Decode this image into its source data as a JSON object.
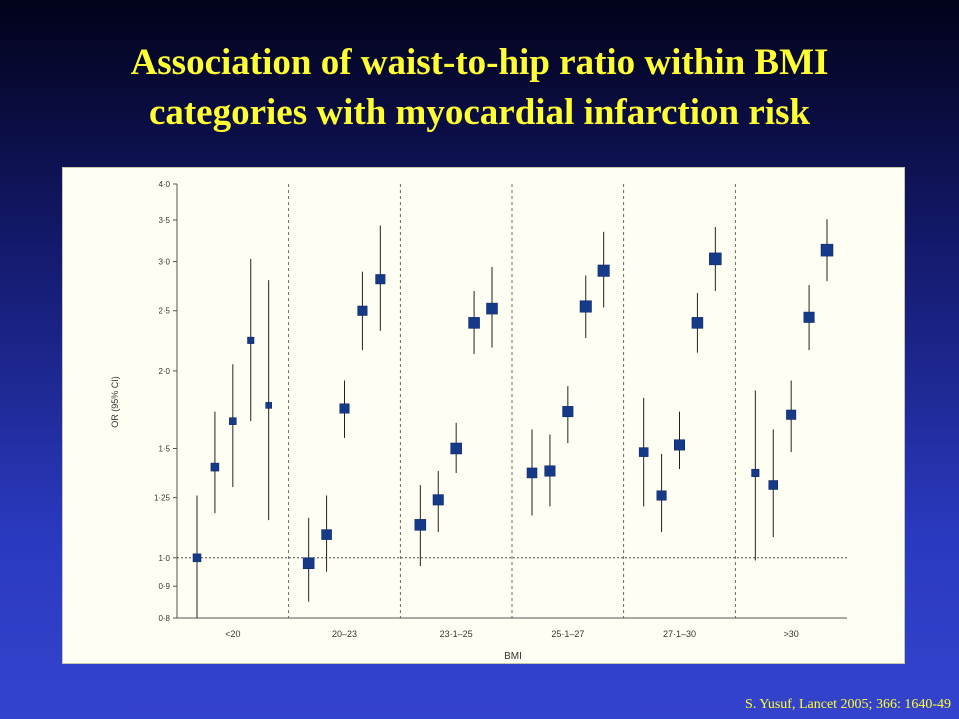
{
  "slide": {
    "title_line1": "Association of waist-to-hip ratio within BMI",
    "title_line2": "categories with myocardial infarction risk",
    "citation": "S. Yusuf, Lancet 2005; 366: 1640-49",
    "title_color": "#ffff33",
    "panel_color": "#fffef3",
    "marker_color": "#163a8a"
  },
  "chart_data": {
    "type": "scatter",
    "subtype": "forest-plot",
    "ylabel": "OR (95% CI)",
    "xlabel": "BMI",
    "y_scale": "log",
    "ylim": [
      0.8,
      4.0
    ],
    "yticks": [
      0.8,
      0.9,
      1.0,
      1.25,
      1.5,
      2.0,
      2.5,
      3.0,
      3.5,
      4.0
    ],
    "ytick_labels": [
      "0·8",
      "0·9",
      "1·0",
      "1·25",
      "1·5",
      "2·0",
      "2·5",
      "3·0",
      "3·5",
      "4·0"
    ],
    "reference_line": 1.0,
    "categories": [
      "<20",
      "20–23",
      "23·1–25",
      "25·1–27",
      "27·1–30",
      ">30"
    ],
    "groups": [
      {
        "category": "<20",
        "points": [
          {
            "or": 1.0,
            "lo": 0.8,
            "hi": 1.26,
            "marker": 0.4
          },
          {
            "or": 1.4,
            "lo": 1.18,
            "hi": 1.72,
            "marker": 0.4
          },
          {
            "or": 1.66,
            "lo": 1.3,
            "hi": 2.05,
            "marker": 0.3
          },
          {
            "or": 2.24,
            "lo": 1.66,
            "hi": 3.03,
            "marker": 0.25
          },
          {
            "or": 1.76,
            "lo": 1.15,
            "hi": 2.8,
            "marker": 0.2
          }
        ]
      },
      {
        "category": "20–23",
        "points": [
          {
            "or": 0.98,
            "lo": 0.85,
            "hi": 1.16,
            "marker": 0.7
          },
          {
            "or": 1.09,
            "lo": 0.95,
            "hi": 1.26,
            "marker": 0.6
          },
          {
            "or": 1.74,
            "lo": 1.56,
            "hi": 1.93,
            "marker": 0.55
          },
          {
            "or": 2.5,
            "lo": 2.16,
            "hi": 2.89,
            "marker": 0.55
          },
          {
            "or": 2.81,
            "lo": 2.32,
            "hi": 3.43,
            "marker": 0.55
          }
        ]
      },
      {
        "category": "23·1–25",
        "points": [
          {
            "or": 1.13,
            "lo": 0.97,
            "hi": 1.31,
            "marker": 0.7
          },
          {
            "or": 1.24,
            "lo": 1.1,
            "hi": 1.38,
            "marker": 0.65
          },
          {
            "or": 1.5,
            "lo": 1.37,
            "hi": 1.65,
            "marker": 0.7
          },
          {
            "or": 2.39,
            "lo": 2.13,
            "hi": 2.69,
            "marker": 0.7
          },
          {
            "or": 2.52,
            "lo": 2.18,
            "hi": 2.94,
            "marker": 0.7
          }
        ]
      },
      {
        "category": "25·1–27",
        "points": [
          {
            "or": 1.37,
            "lo": 1.17,
            "hi": 1.61,
            "marker": 0.6
          },
          {
            "or": 1.38,
            "lo": 1.21,
            "hi": 1.58,
            "marker": 0.65
          },
          {
            "or": 1.72,
            "lo": 1.53,
            "hi": 1.89,
            "marker": 0.65
          },
          {
            "or": 2.54,
            "lo": 2.26,
            "hi": 2.85,
            "marker": 0.75
          },
          {
            "or": 2.9,
            "lo": 2.53,
            "hi": 3.35,
            "marker": 0.75
          }
        ]
      },
      {
        "category": "27·1–30",
        "points": [
          {
            "or": 1.48,
            "lo": 1.21,
            "hi": 1.81,
            "marker": 0.5
          },
          {
            "or": 1.26,
            "lo": 1.1,
            "hi": 1.47,
            "marker": 0.55
          },
          {
            "or": 1.52,
            "lo": 1.39,
            "hi": 1.72,
            "marker": 0.65
          },
          {
            "or": 2.39,
            "lo": 2.14,
            "hi": 2.67,
            "marker": 0.7
          },
          {
            "or": 3.03,
            "lo": 2.69,
            "hi": 3.41,
            "marker": 0.8
          }
        ]
      },
      {
        "category": ">30",
        "points": [
          {
            "or": 1.37,
            "lo": 0.99,
            "hi": 1.86,
            "marker": 0.35
          },
          {
            "or": 1.31,
            "lo": 1.08,
            "hi": 1.61,
            "marker": 0.5
          },
          {
            "or": 1.7,
            "lo": 1.48,
            "hi": 1.93,
            "marker": 0.55
          },
          {
            "or": 2.44,
            "lo": 2.16,
            "hi": 2.75,
            "marker": 0.65
          },
          {
            "or": 3.13,
            "lo": 2.79,
            "hi": 3.51,
            "marker": 0.8
          }
        ]
      }
    ]
  }
}
